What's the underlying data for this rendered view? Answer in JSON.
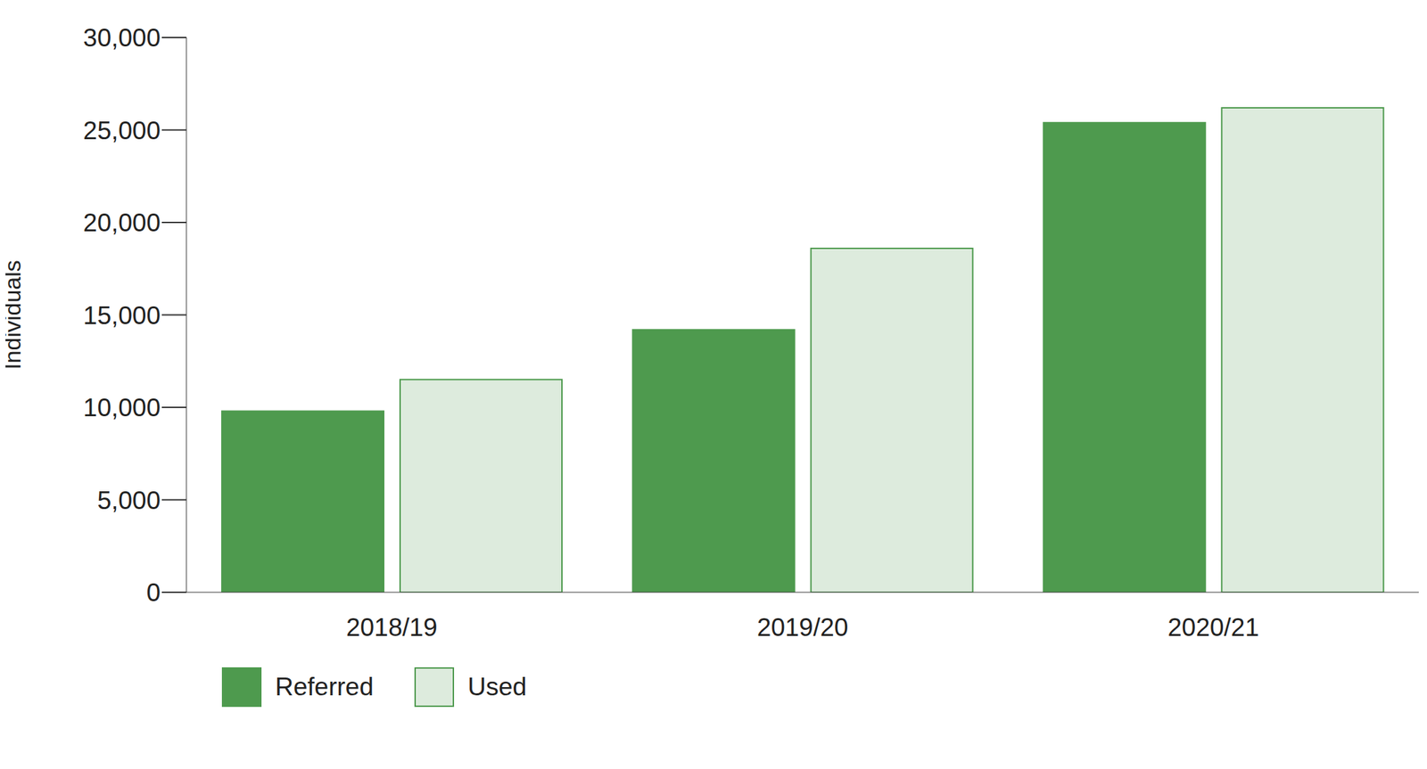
{
  "chart_data": {
    "type": "bar",
    "y_label": "Individuals",
    "categories": [
      "2018/19",
      "2019/20",
      "2020/21"
    ],
    "series": [
      {
        "name": "Referred",
        "color": "#4e9a4e",
        "values": [
          9800,
          14200,
          25400
        ]
      },
      {
        "name": "Used",
        "color": "#ddebdd",
        "values": [
          11500,
          18600,
          26200
        ]
      }
    ],
    "ylim": [
      0,
      30000
    ],
    "yticks": [
      0,
      {
        "value": 5000,
        "label": "5,000"
      },
      {
        "value": 10000,
        "label": "10,000"
      },
      {
        "value": 15000,
        "label": "15,000"
      },
      {
        "value": 20000,
        "label": "20,000"
      },
      {
        "value": 25000,
        "label": "25,000"
      },
      {
        "value": 30000,
        "label": "30,000"
      }
    ],
    "grid": false,
    "legend": "bottom-left"
  }
}
